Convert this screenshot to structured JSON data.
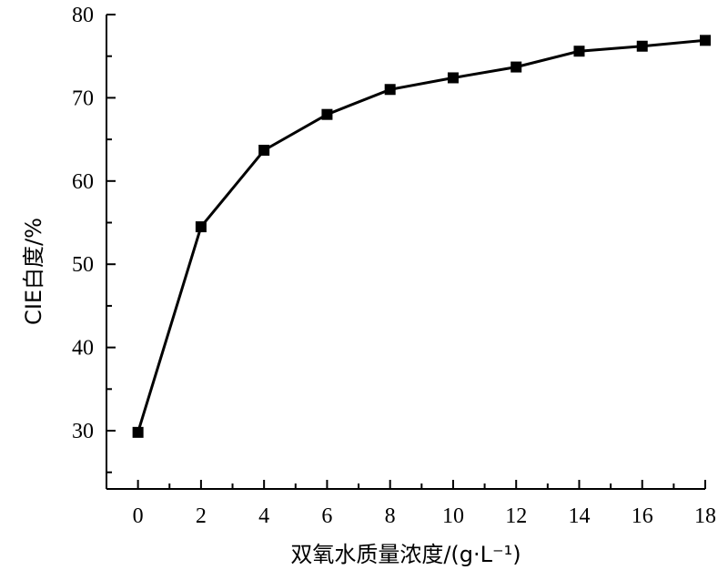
{
  "chart_data": {
    "type": "line",
    "xlabel": "双氧水质量浓度/(g·L⁻¹)",
    "ylabel": "CIE白度/%",
    "x_ticks": [
      0,
      2,
      4,
      6,
      8,
      10,
      12,
      14,
      16,
      18
    ],
    "y_ticks": [
      30,
      40,
      50,
      60,
      70,
      80
    ],
    "xlim": [
      -1,
      18
    ],
    "ylim": [
      23,
      80
    ],
    "series": [
      {
        "x": [
          0,
          2,
          4,
          6,
          8,
          10,
          12,
          14,
          16,
          18
        ],
        "y": [
          29.8,
          54.5,
          63.7,
          68.0,
          71.0,
          72.4,
          73.7,
          75.6,
          76.2,
          76.9
        ]
      }
    ],
    "marker": "square",
    "line_color": "#000000",
    "grid": false
  }
}
